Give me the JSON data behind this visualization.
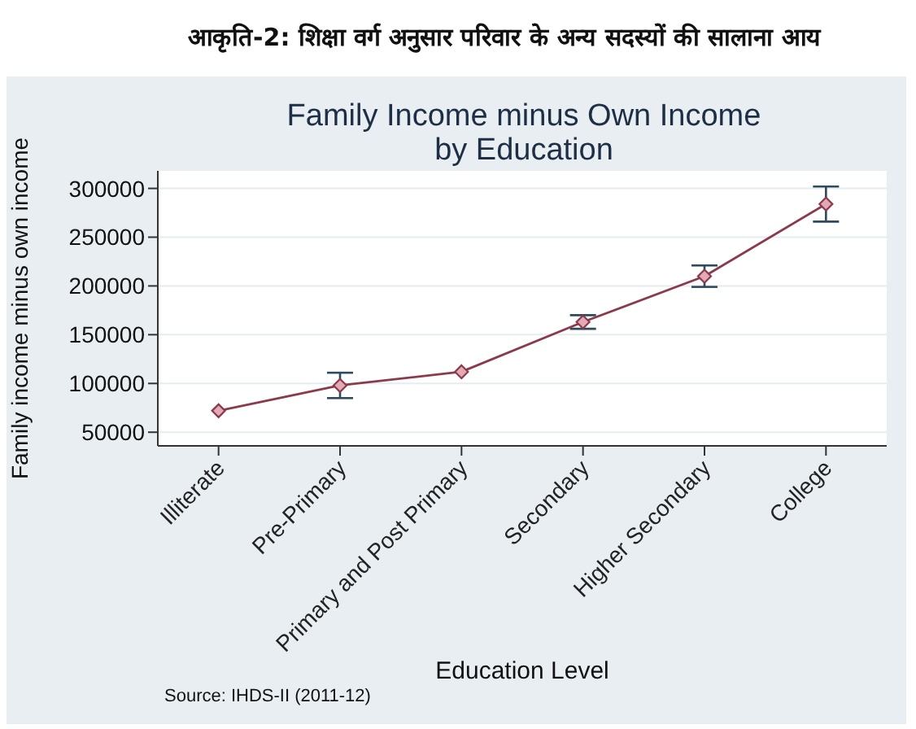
{
  "chart_data": {
    "type": "line",
    "title": "आकृति-2: शिक्षा वर्ग अनुसार परिवार के अन्य सदस्यों की सालाना आय",
    "subtitle": "Family Income minus Own Income by Education",
    "xlabel": "Education Level",
    "ylabel": "Family income minus own income",
    "annotations": [
      "Source: IHDS-II (2011-12)"
    ],
    "categories": [
      "Illiterate",
      "Pre-Primary",
      "Primary and Post Primary",
      "Secondary",
      "Higher Secondary",
      "College"
    ],
    "series": [
      {
        "color": "#8b3a4c",
        "values": [
          72000,
          98000,
          112000,
          163000,
          210000,
          284000
        ],
        "errors": [
          null,
          13000,
          null,
          7000,
          11000,
          18000
        ]
      }
    ],
    "ylim": [
      36000,
      318000
    ],
    "yticks": [
      50000,
      100000,
      150000,
      200000,
      250000,
      300000
    ],
    "grid": "y",
    "marker": "diamond",
    "line_style": "solid"
  }
}
